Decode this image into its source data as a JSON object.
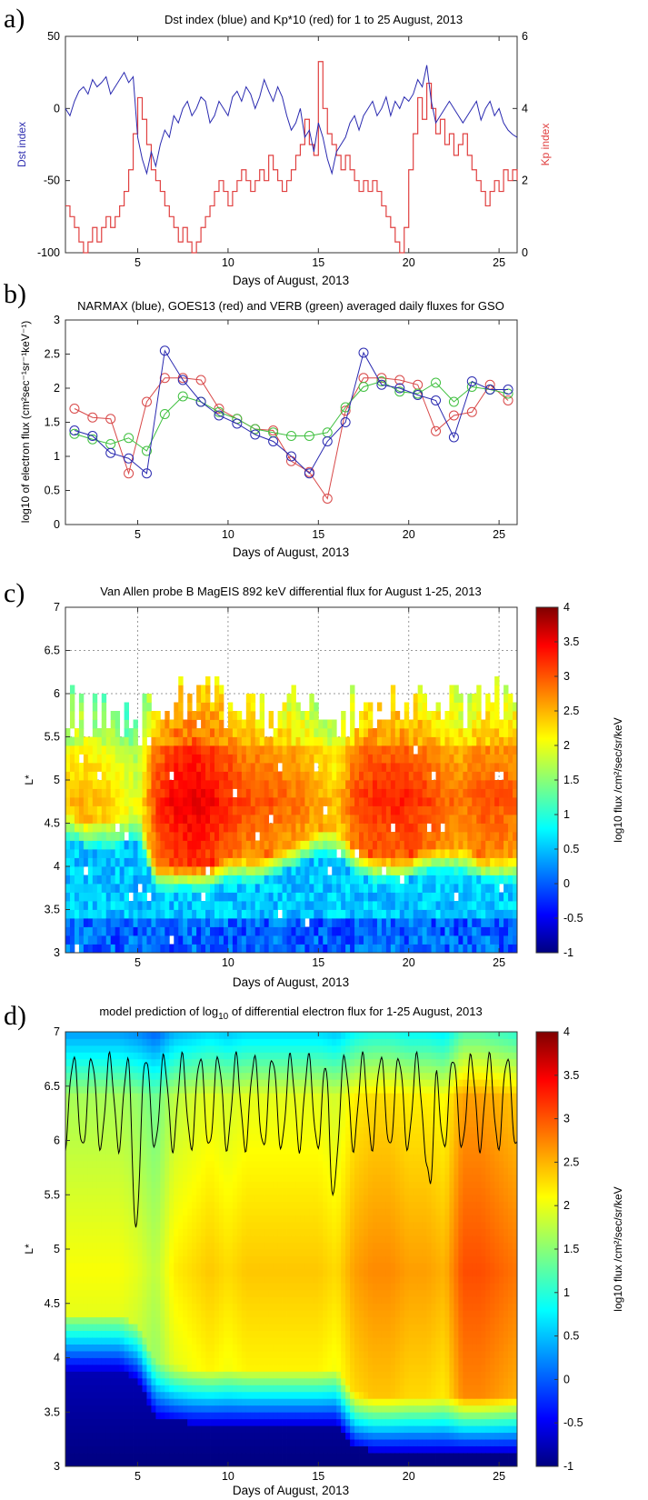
{
  "chart_data": [
    {
      "panel": "a)",
      "type": "line",
      "title": "Dst index (blue) and Kp*10 (red) for 1 to 25 August, 2013",
      "xlabel": "Days of August, 2013",
      "ylabel": "Dst index",
      "ylabel_right": "Kp index",
      "xlim": [
        1,
        26
      ],
      "ylim": [
        -100,
        50
      ],
      "ylim_right": [
        0,
        6
      ],
      "xticks": [
        5,
        10,
        15,
        20,
        25
      ],
      "yticks": [
        -100,
        -50,
        0,
        50
      ],
      "yticks_right": [
        0,
        2,
        4,
        6
      ],
      "grid": false,
      "colors": {
        "dst": "#2a2ab0",
        "kp": "#e04040"
      },
      "series": [
        {
          "axis": "left",
          "x": [
            1,
            1.25,
            1.5,
            1.75,
            2,
            2.25,
            2.5,
            2.75,
            3,
            3.25,
            3.5,
            3.75,
            4,
            4.25,
            4.5,
            4.75,
            5,
            5.25,
            5.5,
            5.75,
            6,
            6.25,
            6.5,
            6.75,
            7,
            7.25,
            7.5,
            7.75,
            8,
            8.25,
            8.5,
            8.75,
            9,
            9.25,
            9.5,
            9.75,
            10,
            10.25,
            10.5,
            10.75,
            11,
            11.25,
            11.5,
            11.75,
            12,
            12.25,
            12.5,
            12.75,
            13,
            13.25,
            13.5,
            13.75,
            14,
            14.25,
            14.5,
            14.75,
            15,
            15.25,
            15.5,
            15.75,
            16,
            16.25,
            16.5,
            16.75,
            17,
            17.25,
            17.5,
            17.75,
            18,
            18.25,
            18.5,
            18.75,
            19,
            19.25,
            19.5,
            19.75,
            20,
            20.25,
            20.5,
            20.75,
            21,
            21.25,
            21.5,
            21.75,
            22,
            22.25,
            22.5,
            22.75,
            23,
            23.25,
            23.5,
            23.75,
            24,
            24.25,
            24.5,
            24.75,
            25,
            25.25,
            25.5,
            25.75,
            26
          ],
          "values": [
            0,
            -5,
            5,
            12,
            15,
            10,
            20,
            15,
            18,
            22,
            10,
            15,
            20,
            25,
            18,
            22,
            -20,
            -35,
            -45,
            -30,
            -40,
            -25,
            -15,
            -20,
            -5,
            -10,
            0,
            5,
            -5,
            0,
            8,
            5,
            -10,
            -5,
            5,
            0,
            -5,
            8,
            12,
            5,
            15,
            10,
            0,
            8,
            20,
            12,
            5,
            15,
            8,
            -5,
            -15,
            -10,
            0,
            -20,
            -15,
            -30,
            -10,
            -20,
            -35,
            -45,
            -30,
            -25,
            -20,
            -10,
            -5,
            -15,
            -5,
            0,
            5,
            -5,
            0,
            8,
            -5,
            5,
            0,
            8,
            5,
            10,
            20,
            15,
            30,
            5,
            -10,
            -5,
            0,
            5,
            0,
            -5,
            -10,
            -5,
            0,
            5,
            -8,
            0,
            5,
            -5,
            0,
            -10,
            -15,
            -18,
            -20
          ]
        },
        {
          "axis": "right",
          "x": [
            1,
            1.25,
            1.5,
            1.75,
            2,
            2.25,
            2.5,
            2.75,
            3,
            3.25,
            3.5,
            3.75,
            4,
            4.25,
            4.5,
            4.75,
            5,
            5.25,
            5.5,
            5.75,
            6,
            6.25,
            6.5,
            6.75,
            7,
            7.25,
            7.5,
            7.75,
            8,
            8.25,
            8.5,
            8.75,
            9,
            9.25,
            9.5,
            9.75,
            10,
            10.25,
            10.5,
            10.75,
            11,
            11.25,
            11.5,
            11.75,
            12,
            12.25,
            12.5,
            12.75,
            13,
            13.25,
            13.5,
            13.75,
            14,
            14.25,
            14.5,
            14.75,
            15,
            15.25,
            15.5,
            15.75,
            16,
            16.25,
            16.5,
            16.75,
            17,
            17.25,
            17.5,
            17.75,
            18,
            18.25,
            18.5,
            18.75,
            19,
            19.25,
            19.5,
            19.75,
            20,
            20.25,
            20.5,
            20.75,
            21,
            21.25,
            21.5,
            21.75,
            22,
            22.25,
            22.5,
            22.75,
            23,
            23.25,
            23.5,
            23.75,
            24,
            24.25,
            24.5,
            24.75,
            25,
            25.25,
            25.5,
            25.75,
            26
          ],
          "values": [
            1.3,
            1,
            0.7,
            0.3,
            0,
            0.3,
            0.7,
            0.3,
            0.7,
            1,
            0.7,
            1,
            1.3,
            1.7,
            2.3,
            3.3,
            4.3,
            3.7,
            3,
            2.3,
            2,
            1.7,
            1.3,
            1,
            0.7,
            0.3,
            0.7,
            0.3,
            0,
            0.3,
            0.7,
            1,
            1.3,
            1.7,
            2,
            1.7,
            1.3,
            1.7,
            2,
            2.3,
            2,
            1.7,
            2,
            2.3,
            2,
            2.7,
            2.3,
            2,
            1.7,
            2,
            2.3,
            2.7,
            3,
            3.7,
            3,
            2.7,
            5.3,
            4,
            3.3,
            3,
            2.7,
            2.3,
            2.7,
            2.3,
            2,
            1.7,
            2,
            1.7,
            2,
            1.7,
            1.3,
            1,
            0.7,
            0.3,
            0,
            0.7,
            2.3,
            3.3,
            4.3,
            3.7,
            4.7,
            4,
            3.3,
            3.7,
            3,
            3.3,
            2.7,
            3,
            3.3,
            2.7,
            2.3,
            2,
            1.7,
            1.3,
            1.7,
            2,
            1.7,
            2.3,
            2,
            2.3,
            2
          ]
        }
      ]
    },
    {
      "panel": "b)",
      "type": "line",
      "title": "NARMAX (blue), GOES13 (red) and VERB (green) averaged daily fluxes for GSO",
      "xlabel": "Days of August, 2013",
      "ylabel": "log10 of electron flux (cm²sec⁻¹sr⁻¹keV⁻¹)",
      "xlim": [
        1,
        26
      ],
      "ylim": [
        0,
        3
      ],
      "xticks": [
        5,
        10,
        15,
        20,
        25
      ],
      "yticks": [
        0,
        0.5,
        1,
        1.5,
        2,
        2.5,
        3
      ],
      "grid": false,
      "x": [
        1.5,
        2.5,
        3.5,
        4.5,
        5.5,
        6.5,
        7.5,
        8.5,
        9.5,
        10.5,
        11.5,
        12.5,
        13.5,
        14.5,
        15.5,
        16.5,
        17.5,
        18.5,
        19.5,
        20.5,
        21.5,
        22.5,
        23.5,
        24.5,
        25.5
      ],
      "series": [
        {
          "color": "#2a2ab0",
          "values": [
            1.38,
            1.3,
            1.05,
            0.97,
            0.75,
            2.55,
            2.12,
            1.8,
            1.6,
            1.48,
            1.32,
            1.22,
            1.0,
            0.75,
            1.22,
            1.5,
            2.52,
            2.05,
            2.0,
            1.9,
            1.82,
            1.28,
            2.1,
            1.98,
            1.98
          ]
        },
        {
          "color": "#d84848",
          "values": [
            1.7,
            1.57,
            1.55,
            0.75,
            1.8,
            2.15,
            2.15,
            2.12,
            1.7,
            1.55,
            1.4,
            1.38,
            0.93,
            0.77,
            0.38,
            1.67,
            2.15,
            2.15,
            2.12,
            2.05,
            1.37,
            1.6,
            1.65,
            2.05,
            1.82
          ]
        },
        {
          "color": "#40c040",
          "values": [
            1.33,
            1.25,
            1.18,
            1.27,
            1.08,
            1.62,
            1.88,
            1.8,
            1.65,
            1.55,
            1.4,
            1.35,
            1.3,
            1.3,
            1.35,
            1.72,
            2.02,
            2.1,
            1.95,
            1.92,
            2.08,
            1.8,
            2.02,
            1.98,
            1.92
          ]
        }
      ]
    },
    {
      "panel": "c)",
      "type": "heatmap",
      "title": "Van Allen probe B MagEIS 892 keV differential flux for August 1-25, 2013",
      "xlabel": "Days of August, 2013",
      "ylabel": "L*",
      "xlim": [
        1,
        26
      ],
      "ylim": [
        3,
        7
      ],
      "xticks": [
        5,
        10,
        15,
        20,
        25
      ],
      "yticks": [
        3,
        3.5,
        4,
        4.5,
        5,
        5.5,
        6,
        6.5,
        7
      ],
      "grid": true,
      "colorbar": {
        "label": "log10 flux /cm²/sec/sr/keV",
        "range": [
          -1,
          4
        ],
        "ticks": [
          -1,
          -0.5,
          0,
          0.5,
          1,
          1.5,
          2,
          2.5,
          3,
          3.5,
          4
        ]
      },
      "columns": {
        "days": [
          1,
          2,
          3,
          4,
          5,
          6,
          7,
          8,
          9,
          10,
          11,
          12,
          13,
          14,
          15,
          16,
          17,
          18,
          19,
          20,
          21,
          22,
          23,
          24,
          25,
          26
        ],
        "top_L": [
          5.9,
          5.7,
          5.8,
          5.7,
          5.6,
          5.8,
          5.9,
          5.8,
          5.9,
          5.8,
          5.8,
          5.7,
          5.8,
          5.7,
          5.8,
          5.6,
          5.8,
          5.9,
          5.8,
          5.8,
          5.9,
          5.7,
          5.8,
          5.8,
          5.9,
          5.8
        ],
        "peak_flux": [
          2.4,
          2.5,
          2.4,
          2.2,
          2.0,
          3.1,
          3.4,
          3.5,
          3.4,
          3.2,
          3.0,
          3.0,
          2.9,
          2.8,
          2.6,
          2.4,
          3.0,
          3.2,
          3.2,
          3.2,
          3.1,
          2.9,
          2.8,
          3.0,
          3.0,
          2.9
        ],
        "inner_edge_L": [
          4.6,
          4.5,
          4.5,
          4.5,
          4.6,
          4.0,
          4.0,
          4.0,
          4.0,
          4.1,
          4.1,
          4.1,
          4.2,
          4.3,
          4.4,
          4.4,
          4.2,
          4.1,
          4.1,
          4.1,
          4.2,
          4.2,
          4.2,
          4.1,
          4.1,
          4.1
        ]
      }
    },
    {
      "panel": "d)",
      "type": "heatmap",
      "title_main": "model prediction of log",
      "title_sub": "10",
      "title_end": " of differential electron flux for 1-25 August, 2013",
      "xlabel": "Days of August, 2013",
      "ylabel": "L*",
      "xlim": [
        1,
        26
      ],
      "ylim": [
        3,
        7
      ],
      "xticks": [
        5,
        10,
        15,
        20,
        25
      ],
      "yticks": [
        3,
        3.5,
        4,
        4.5,
        5,
        5.5,
        6,
        6.5,
        7
      ],
      "grid": false,
      "colorbar": {
        "label": "log10 flux /cm²/sec/sr/keV",
        "range": [
          -1,
          4
        ],
        "ticks": [
          -1,
          -0.5,
          0,
          0.5,
          1,
          1.5,
          2,
          2.5,
          3,
          3.5,
          4
        ]
      },
      "columns": {
        "days": [
          1,
          2,
          3,
          4,
          5,
          6,
          7,
          8,
          9,
          10,
          11,
          12,
          13,
          14,
          15,
          16,
          17,
          18,
          19,
          20,
          21,
          22,
          23,
          24,
          25,
          26
        ],
        "inner_edge_L": [
          3.9,
          3.9,
          3.9,
          3.9,
          3.8,
          3.45,
          3.42,
          3.4,
          3.4,
          3.4,
          3.4,
          3.4,
          3.4,
          3.4,
          3.4,
          3.4,
          3.18,
          3.15,
          3.15,
          3.15,
          3.15,
          3.15,
          3.15,
          3.15,
          3.15,
          3.15
        ],
        "core_flux": [
          2.1,
          2.1,
          2.1,
          2.1,
          2.0,
          1.8,
          2.2,
          2.3,
          2.4,
          2.3,
          2.4,
          2.4,
          2.4,
          2.4,
          2.4,
          2.3,
          2.6,
          2.7,
          2.7,
          2.6,
          2.6,
          2.5,
          3.0,
          3.0,
          2.9,
          2.8
        ]
      },
      "magnetopause": {
        "color": "#000000",
        "mean_L": 6.35,
        "amplitude": 0.42,
        "period_days": 1.0,
        "dips": [
          {
            "day": 4.9,
            "L": 5.2
          },
          {
            "day": 15.8,
            "L": 5.5
          },
          {
            "day": 21.2,
            "L": 5.6
          }
        ]
      }
    }
  ]
}
